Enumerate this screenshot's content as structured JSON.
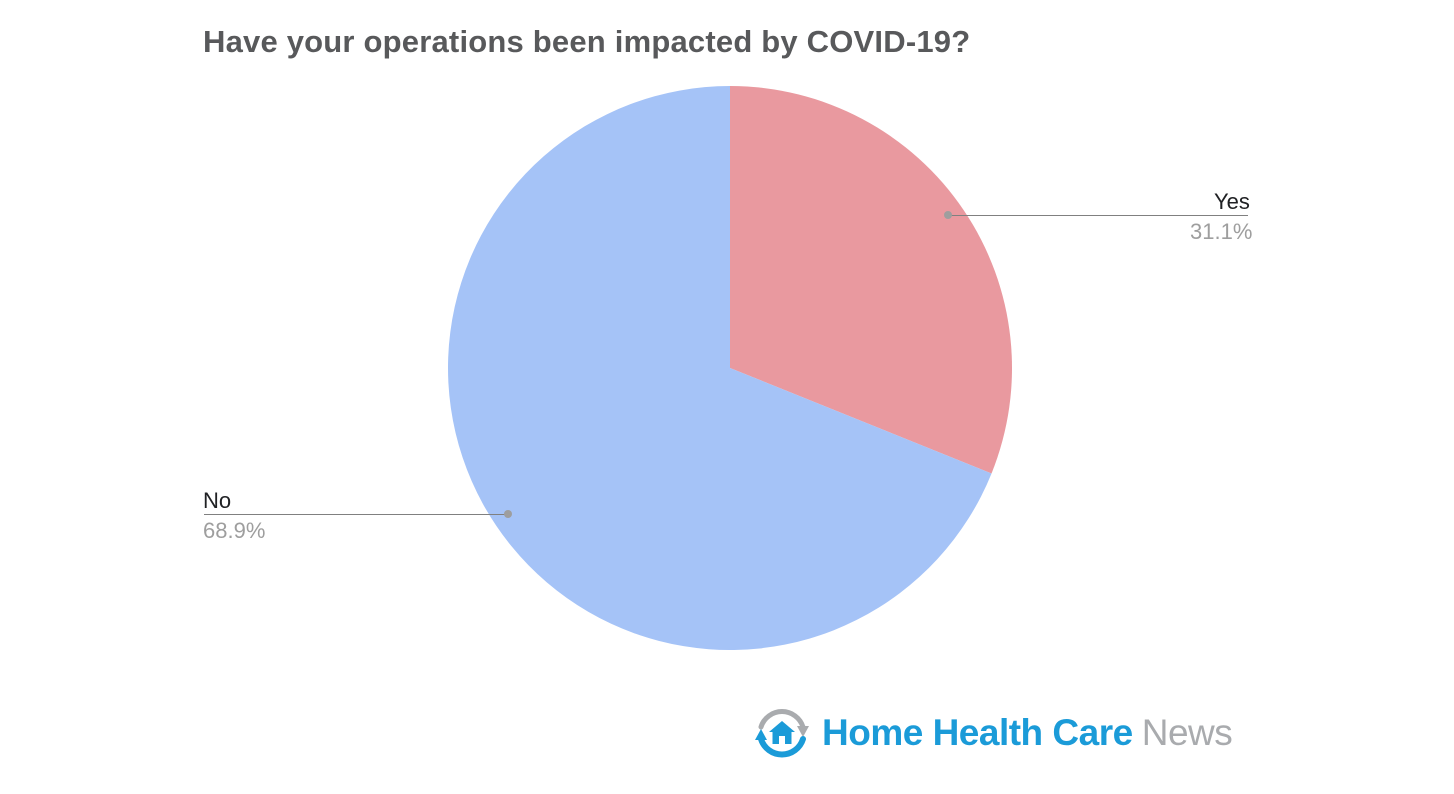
{
  "title": "Have your operations been impacted by COVID-19?",
  "chart_data": {
    "type": "pie",
    "title": "Have your operations been impacted by COVID-19?",
    "labels": [
      "Yes",
      "No"
    ],
    "values": [
      31.1,
      68.9
    ],
    "value_labels": [
      "31.1%",
      "68.9%"
    ],
    "colors": [
      "#e9999f",
      "#a5c3f7"
    ],
    "start_angle_deg": -90,
    "direction": "clockwise",
    "legend": "none",
    "label_style": "callout-lines",
    "title_color": "#58595b",
    "callout_name_color": "#202124",
    "callout_percent_color": "#9e9e9e",
    "callout_line_color": "#808080"
  },
  "branding": {
    "logo_text_primary": "Home Health Care",
    "logo_text_secondary": "News",
    "brand_blue": "#1b9bd8",
    "brand_gray": "#a9abae"
  }
}
